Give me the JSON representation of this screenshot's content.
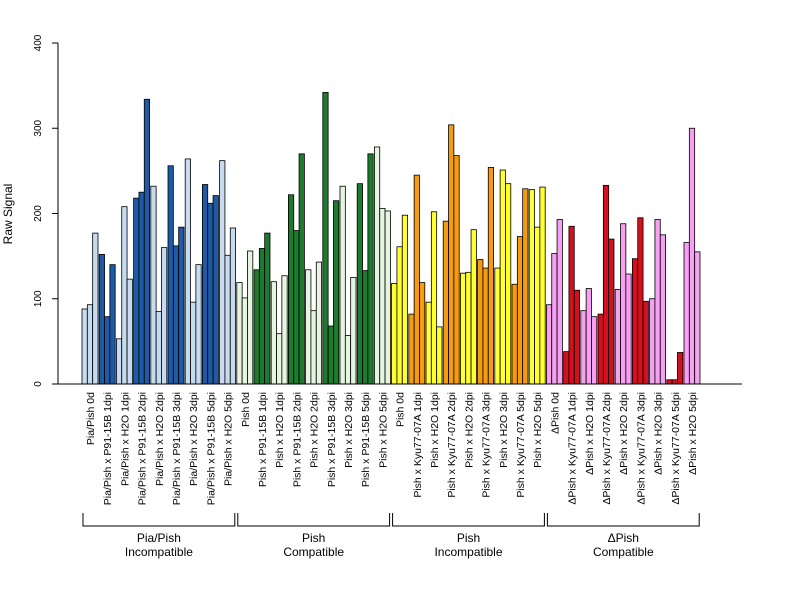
{
  "chart_data": {
    "type": "bar",
    "ylabel": "Raw Signal",
    "ylim": [
      0,
      400
    ],
    "yticks": [
      "0",
      "100",
      "200",
      "300",
      "400"
    ],
    "categories": [
      "Pia/Pish 0d",
      "Pia/Pish x P91-15B 1dpi",
      "Pia/Pish x H2O 1dpi",
      "Pia/Pish x P91-15B 2dpi",
      "Pia/Pish x H2O 2dpi",
      "Pia/Pish x P91-15B 3dpi",
      "Pia/Pish x H2O 3dpi",
      "Pia/Pish x P91-15B 5dpi",
      "Pia/Pish x H2O 5dpi",
      "Pish 0d",
      "Pish x P91-15B 1dpi",
      "Pish x H2O 1dpi",
      "Pish x P91-15B 2dpi",
      "Pish x H2O 2dpi",
      "Pish x P91-15B 3dpi",
      "Pish x H2O 3dpi",
      "Pish x P91-15B 5dpi",
      "Pish x H2O 5dpi",
      "Pish 0d",
      "Pish x Kyu77-07A 1dpi",
      "Pish x H2O 1dpi",
      "Pish x Kyu77-07A 2dpi",
      "Pish x H2O 2dpi",
      "Pish x Kyu77-07A 3dpi",
      "Pish x H2O 3dpi",
      "Pish x Kyu77-07A 5dpi",
      "Pish x H2O 5dpi",
      "ΔPish 0d",
      "ΔPish x Kyu77-07A 1dpi",
      "ΔPish x H2O 1dpi",
      "ΔPish x Kyu77-07A 2dpi",
      "ΔPish x H2O 2dpi",
      "ΔPish x Kyu77-07A 3dpi",
      "ΔPish x H2O 3dpi",
      "ΔPish x Kyu77-07A 5dpi",
      "ΔPish x H2O 5dpi"
    ],
    "values": [
      [
        88,
        93,
        177
      ],
      [
        152,
        79,
        140
      ],
      [
        53,
        208,
        123
      ],
      [
        218,
        225,
        334
      ],
      [
        232,
        85,
        160
      ],
      [
        256,
        162,
        184
      ],
      [
        264,
        96,
        140
      ],
      [
        234,
        212,
        221
      ],
      [
        262,
        151,
        183
      ],
      [
        119,
        101,
        156
      ],
      [
        134,
        159,
        177
      ],
      [
        120,
        59,
        127
      ],
      [
        222,
        180,
        270
      ],
      [
        134,
        86,
        143
      ],
      [
        342,
        68,
        215
      ],
      [
        232,
        57,
        125
      ],
      [
        235,
        133,
        270
      ],
      [
        278,
        206,
        203
      ],
      [
        118,
        161,
        198
      ],
      [
        82,
        245,
        119
      ],
      [
        96,
        202,
        67
      ],
      [
        191,
        304,
        268
      ],
      [
        130,
        131,
        181
      ],
      [
        146,
        136,
        254
      ],
      [
        136,
        251,
        235
      ],
      [
        117,
        173,
        229
      ],
      [
        228,
        184,
        231
      ],
      [
        93,
        153,
        193
      ],
      [
        38,
        185,
        110
      ],
      [
        86,
        112,
        79
      ],
      [
        82,
        233,
        170
      ],
      [
        111,
        188,
        129
      ],
      [
        147,
        195,
        97
      ],
      [
        100,
        193,
        175
      ],
      [
        5,
        5,
        37
      ],
      [
        166,
        300,
        155
      ]
    ],
    "group_colors": [
      "#c6dbef",
      "#1f5aa6",
      "#e5f5e0",
      "#1e7a2e",
      "#ffff33",
      "#f59b12",
      "#f5a0f0",
      "#d5101e"
    ],
    "bar_colors": [
      0,
      0,
      0,
      1,
      1,
      1,
      0,
      0,
      0,
      1,
      1,
      1,
      0,
      0,
      0,
      1,
      1,
      1,
      0,
      0,
      0,
      1,
      1,
      1,
      0,
      0,
      0,
      2,
      2,
      2,
      3,
      3,
      3,
      2,
      2,
      2,
      3,
      3,
      3,
      2,
      2,
      2,
      3,
      3,
      3,
      2,
      2,
      2,
      3,
      3,
      3,
      2,
      2,
      2,
      4,
      4,
      4,
      5,
      5,
      5,
      4,
      4,
      4,
      5,
      5,
      5,
      4,
      4,
      4,
      5,
      5,
      5,
      4,
      4,
      4,
      5,
      5,
      5,
      4,
      4,
      4,
      6,
      6,
      6,
      7,
      7,
      7,
      6,
      6,
      6,
      7,
      7,
      7,
      6,
      6,
      6,
      7,
      7,
      7,
      6,
      6,
      6,
      7,
      7,
      7,
      6,
      6,
      6
    ],
    "groups": [
      {
        "line1": "Pia/Pish",
        "line2": "Incompatible"
      },
      {
        "line1": "Pish",
        "line2": "Compatible"
      },
      {
        "line1": "Pish",
        "line2": "Incompatible"
      },
      {
        "line1": "ΔPish",
        "line2": "Compatible"
      }
    ],
    "grid": false,
    "legend": "none"
  }
}
